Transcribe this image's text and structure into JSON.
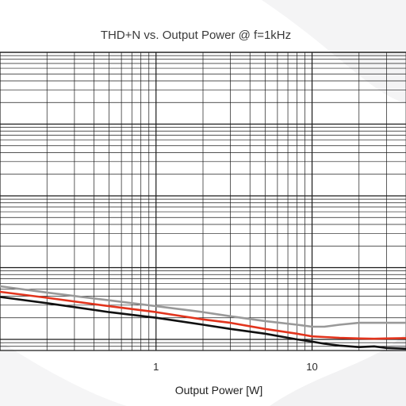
{
  "chart_data": {
    "type": "line",
    "title": "THD+N vs. Output Power @ f=1kHz",
    "xlabel": "Output Power [W]",
    "ylabel": "",
    "x_scale": "log",
    "y_scale": "log",
    "xlim": [
      0.1,
      40
    ],
    "ylim": [
      0.0007,
      10
    ],
    "grid": true,
    "x_tick_labels": [
      {
        "value": 1,
        "label": "1"
      },
      {
        "value": 10,
        "label": "10"
      }
    ],
    "series": [
      {
        "color": "#999999",
        "x": [
          0.1,
          0.2,
          0.5,
          1,
          2,
          3,
          5,
          8,
          10,
          12,
          15,
          20,
          25,
          30,
          40
        ],
        "y": [
          0.0055,
          0.0045,
          0.0035,
          0.0029,
          0.0024,
          0.0021,
          0.0018,
          0.0016,
          0.0015,
          0.0015,
          0.0016,
          0.0017,
          0.0017,
          0.0017,
          0.0017
        ]
      },
      {
        "color": "#e2341d",
        "x": [
          0.1,
          0.2,
          0.5,
          1,
          2,
          3,
          5,
          8,
          10,
          12,
          15,
          20,
          25,
          30,
          40
        ],
        "y": [
          0.0046,
          0.0038,
          0.0029,
          0.0024,
          0.0019,
          0.0017,
          0.0014,
          0.0012,
          0.0011,
          0.00108,
          0.00105,
          0.00103,
          0.00102,
          0.00103,
          0.00104
        ]
      },
      {
        "color": "#111111",
        "x": [
          0.1,
          0.2,
          0.5,
          1,
          2,
          3,
          5,
          8,
          10,
          12,
          15,
          20,
          25,
          30,
          40
        ],
        "y": [
          0.0039,
          0.0032,
          0.0024,
          0.002,
          0.0016,
          0.0014,
          0.0012,
          0.001,
          0.00093,
          0.00087,
          0.00082,
          0.00078,
          0.0008,
          0.00076,
          0.00074
        ]
      }
    ]
  }
}
